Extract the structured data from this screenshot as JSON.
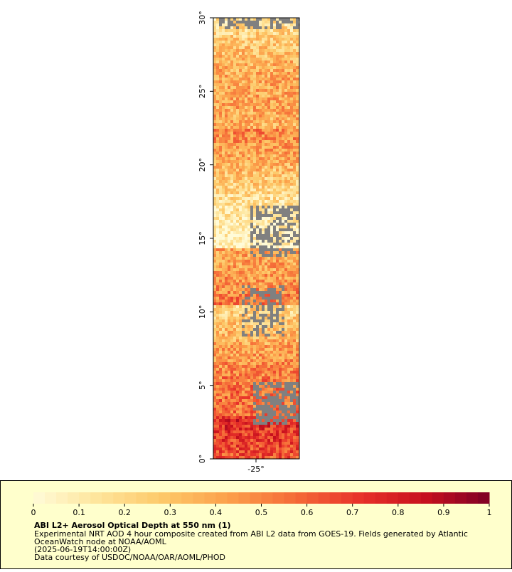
{
  "map": {
    "xlim": [
      -27.9,
      -22.05
    ],
    "ylim": [
      0,
      30
    ],
    "xticks": [
      {
        "value": -25,
        "label": "-25°"
      }
    ],
    "yticks": [
      {
        "value": 0,
        "label": "0°"
      },
      {
        "value": 5,
        "label": "5°"
      },
      {
        "value": 10,
        "label": "10°"
      },
      {
        "value": 15,
        "label": "15°"
      },
      {
        "value": 20,
        "label": "20°"
      },
      {
        "value": 25,
        "label": "25°"
      },
      {
        "value": 30,
        "label": "30°"
      }
    ]
  },
  "colorbar": {
    "range": [
      0,
      1
    ],
    "ticks": [
      0,
      0.1,
      0.2,
      0.3,
      0.4,
      0.5,
      0.6,
      0.7,
      0.8,
      0.9,
      1
    ],
    "colors": [
      "#fffbd8",
      "#fee49a",
      "#fdc868",
      "#fc9f4a",
      "#f56c38",
      "#e8322a",
      "#c8101e",
      "#7d0025"
    ]
  },
  "legend": {
    "title": "ABI L2+ Aerosol Optical Depth at 550 nm (1)",
    "lines": [
      "Experimental NRT AOD 4 hour composite created from ABI L2 data from GOES-19. Fields generated by Atlantic",
      "OceanWatch node at NOAA/AOML",
      "(2025-06-19T14:00:00Z)",
      "Data courtesy of USDOC/NOAA/OAR/AOML/PHOD"
    ]
  }
}
